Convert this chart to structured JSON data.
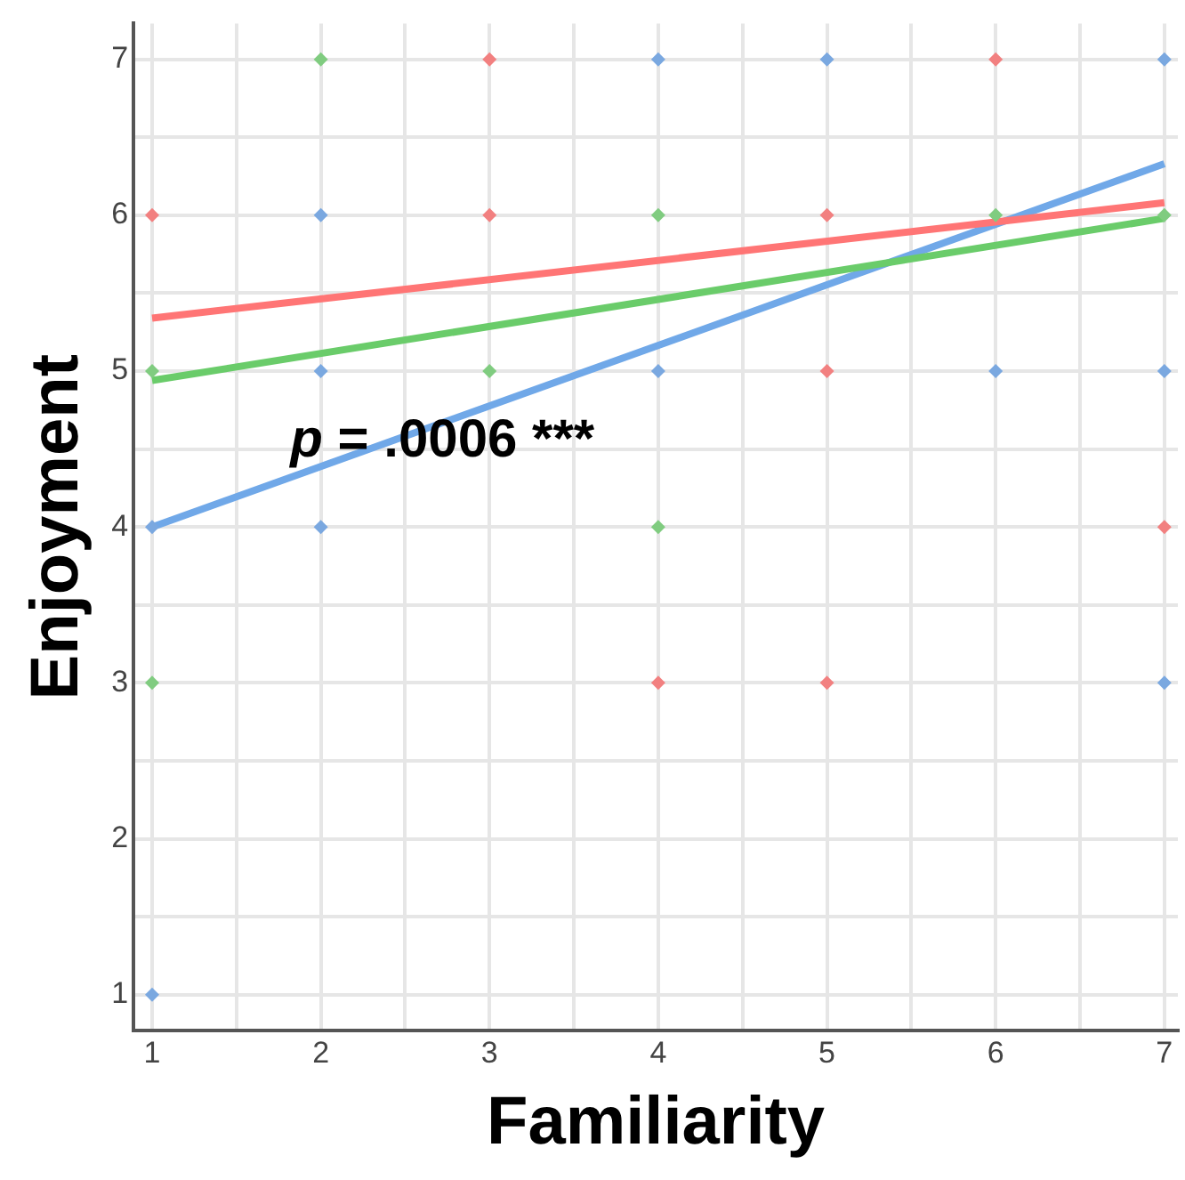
{
  "chart_data": {
    "type": "scatter",
    "xlabel": "Familiarity",
    "ylabel": "Enjoyment",
    "xlim": [
      0.89,
      7.08
    ],
    "ylim": [
      0.77,
      7.23
    ],
    "xticks": [
      1,
      {
        "value": 1.5,
        "label": null
      },
      2,
      {
        "value": 2.5,
        "label": null
      },
      3,
      {
        "value": 3.5,
        "label": null
      },
      4,
      {
        "value": 4.5,
        "label": null
      },
      5,
      {
        "value": 5.5,
        "label": null
      },
      6,
      {
        "value": 6.5,
        "label": null
      },
      7
    ],
    "yticks": [
      1,
      {
        "value": 1.5,
        "label": null
      },
      2,
      {
        "value": 2.5,
        "label": null
      },
      3,
      {
        "value": 3.5,
        "label": null
      },
      4,
      {
        "value": 4.5,
        "label": null
      },
      5,
      {
        "value": 5.5,
        "label": null
      },
      6,
      {
        "value": 6.5,
        "label": null
      },
      7
    ],
    "grid": true,
    "legend": false,
    "marker": "diamond",
    "series": [
      {
        "color": "#f28080",
        "x": [
          1,
          3,
          3,
          5,
          5,
          6,
          7,
          4,
          5
        ],
        "values": [
          6,
          7,
          6,
          6,
          5,
          7,
          4,
          3,
          3
        ]
      },
      {
        "color": "#80cc80",
        "x": [
          2,
          4,
          7,
          1,
          3,
          4,
          1,
          6
        ],
        "values": [
          7,
          6,
          6,
          5,
          5,
          4,
          3,
          6
        ]
      },
      {
        "color": "#7aa8e0",
        "x": [
          4,
          5,
          7,
          2,
          2,
          4,
          6,
          7,
          1,
          2,
          7,
          1
        ],
        "values": [
          7,
          7,
          7,
          6,
          5,
          5,
          5,
          5,
          4,
          4,
          3,
          1
        ]
      },
      {
        "type": "line",
        "marker": "none",
        "color": "#ff7575",
        "x": [
          1,
          7
        ],
        "values": [
          5.34,
          6.08
        ]
      },
      {
        "type": "line",
        "marker": "none",
        "color": "#6acc6a",
        "x": [
          1,
          7
        ],
        "values": [
          4.94,
          5.98
        ]
      },
      {
        "type": "line",
        "marker": "none",
        "color": "#70a8e8",
        "x": [
          1,
          7
        ],
        "values": [
          4.0,
          6.33
        ]
      }
    ],
    "annotations": [
      "p = .0006 ***"
    ]
  }
}
